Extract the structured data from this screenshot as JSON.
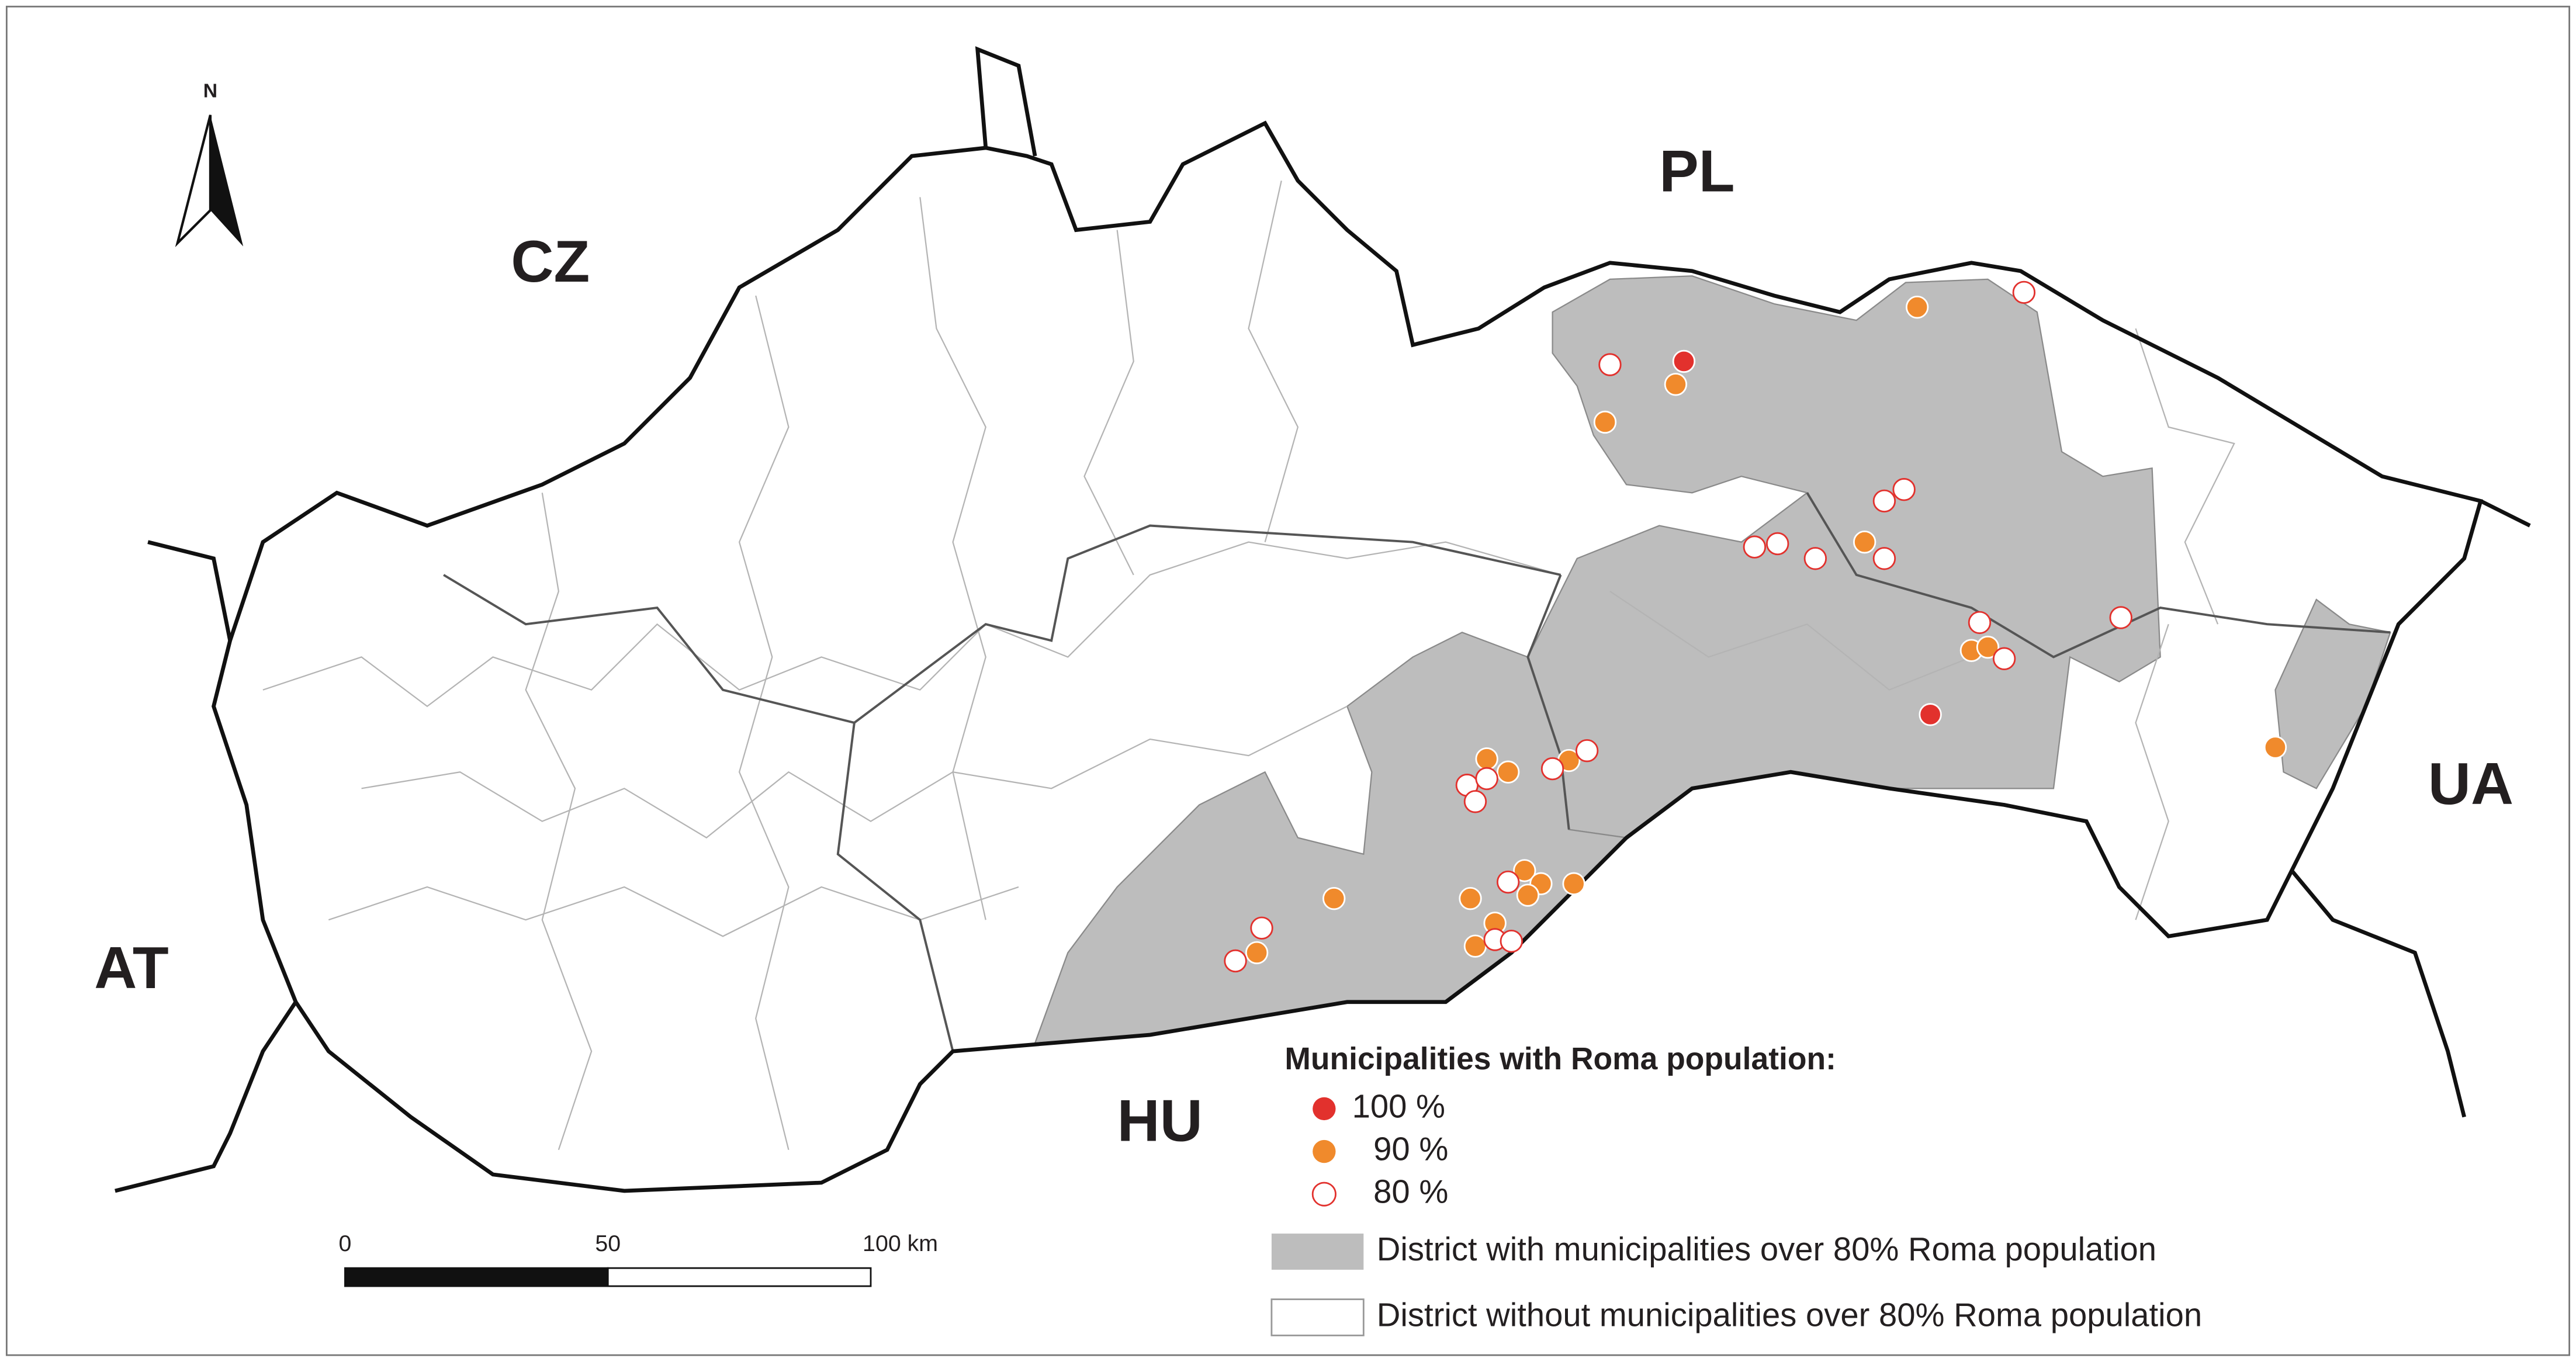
{
  "map": {
    "north_arrow": "N",
    "countries": [
      "CZ",
      "PL",
      "AT",
      "HU",
      "UA"
    ],
    "legend": {
      "title": "Municipalities with Roma population:",
      "items": [
        "100 %",
        "90 %",
        "80 %",
        "District with municipalities over 80% Roma population",
        "District without municipalities over 80% Roma population"
      ]
    },
    "scale_bar": {
      "labels": [
        "0",
        "50",
        "100 km"
      ]
    }
  }
}
